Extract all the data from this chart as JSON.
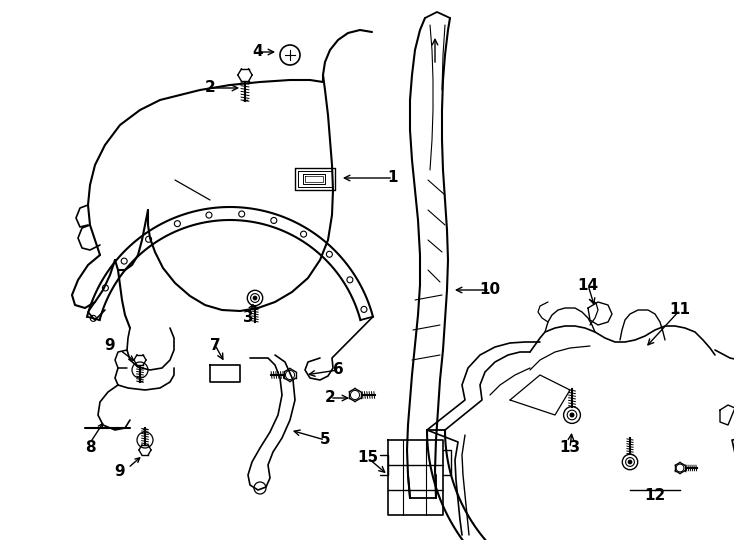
{
  "bg_color": "#ffffff",
  "line_color": "#000000",
  "lw": 1.3,
  "figsize": [
    7.34,
    5.4
  ],
  "dpi": 100
}
